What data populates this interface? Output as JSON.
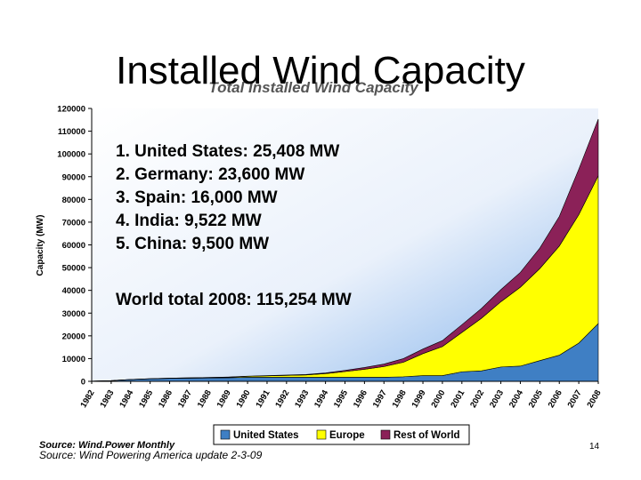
{
  "slide": {
    "title": "Installed Wind Capacity",
    "source": "Source: Wind Powering America update 2-3-09",
    "page_number": "14"
  },
  "chart_data": {
    "type": "area",
    "stacked": true,
    "title": "Total Installed Wind Capacity",
    "xlabel": "",
    "ylabel": "Capacity (MW)",
    "ylim": [
      0,
      120000
    ],
    "yticks": [
      0,
      10000,
      20000,
      30000,
      40000,
      50000,
      60000,
      70000,
      80000,
      90000,
      100000,
      110000,
      120000
    ],
    "x": [
      "1982",
      "1983",
      "1984",
      "1985",
      "1986",
      "1987",
      "1988",
      "1989",
      "1990",
      "1991",
      "1992",
      "1993",
      "1994",
      "1995",
      "1996",
      "1997",
      "1998",
      "1999",
      "2000",
      "2001",
      "2002",
      "2003",
      "2004",
      "2005",
      "2006",
      "2007",
      "2008"
    ],
    "series": [
      {
        "name": "United States",
        "color": "#3f7fc4",
        "values": [
          100,
          300,
          800,
          1100,
          1300,
          1400,
          1500,
          1600,
          1800,
          1800,
          1800,
          1800,
          1800,
          1800,
          1800,
          1800,
          2000,
          2500,
          2500,
          4200,
          4600,
          6300,
          6700,
          9100,
          11500,
          16800,
          25400
        ]
      },
      {
        "name": "Europe",
        "color": "#ffff00",
        "values": [
          0,
          0,
          0,
          50,
          100,
          150,
          200,
          250,
          400,
          600,
          800,
          1000,
          1600,
          2500,
          3500,
          4700,
          6400,
          9700,
          12800,
          17300,
          23100,
          28700,
          34700,
          40500,
          48000,
          56500,
          65000
        ]
      },
      {
        "name": "Rest of World",
        "color": "#8b2158",
        "values": [
          0,
          0,
          0,
          0,
          0,
          0,
          0,
          50,
          100,
          100,
          150,
          200,
          300,
          500,
          800,
          1100,
          1600,
          2000,
          2600,
          3400,
          4300,
          5300,
          6500,
          9000,
          13000,
          20000,
          24900
        ]
      }
    ],
    "legend": "bottom",
    "annotations": [
      "1.   United States: 25,408 MW",
      "2.   Germany: 23,600 MW",
      "3.   Spain: 16,000 MW",
      "4.   India: 9,522 MW",
      "5.   China: 9,500 MW",
      "World total 2008: 115,254 MW"
    ],
    "source_note": "Source: Wind.Power Monthly"
  }
}
